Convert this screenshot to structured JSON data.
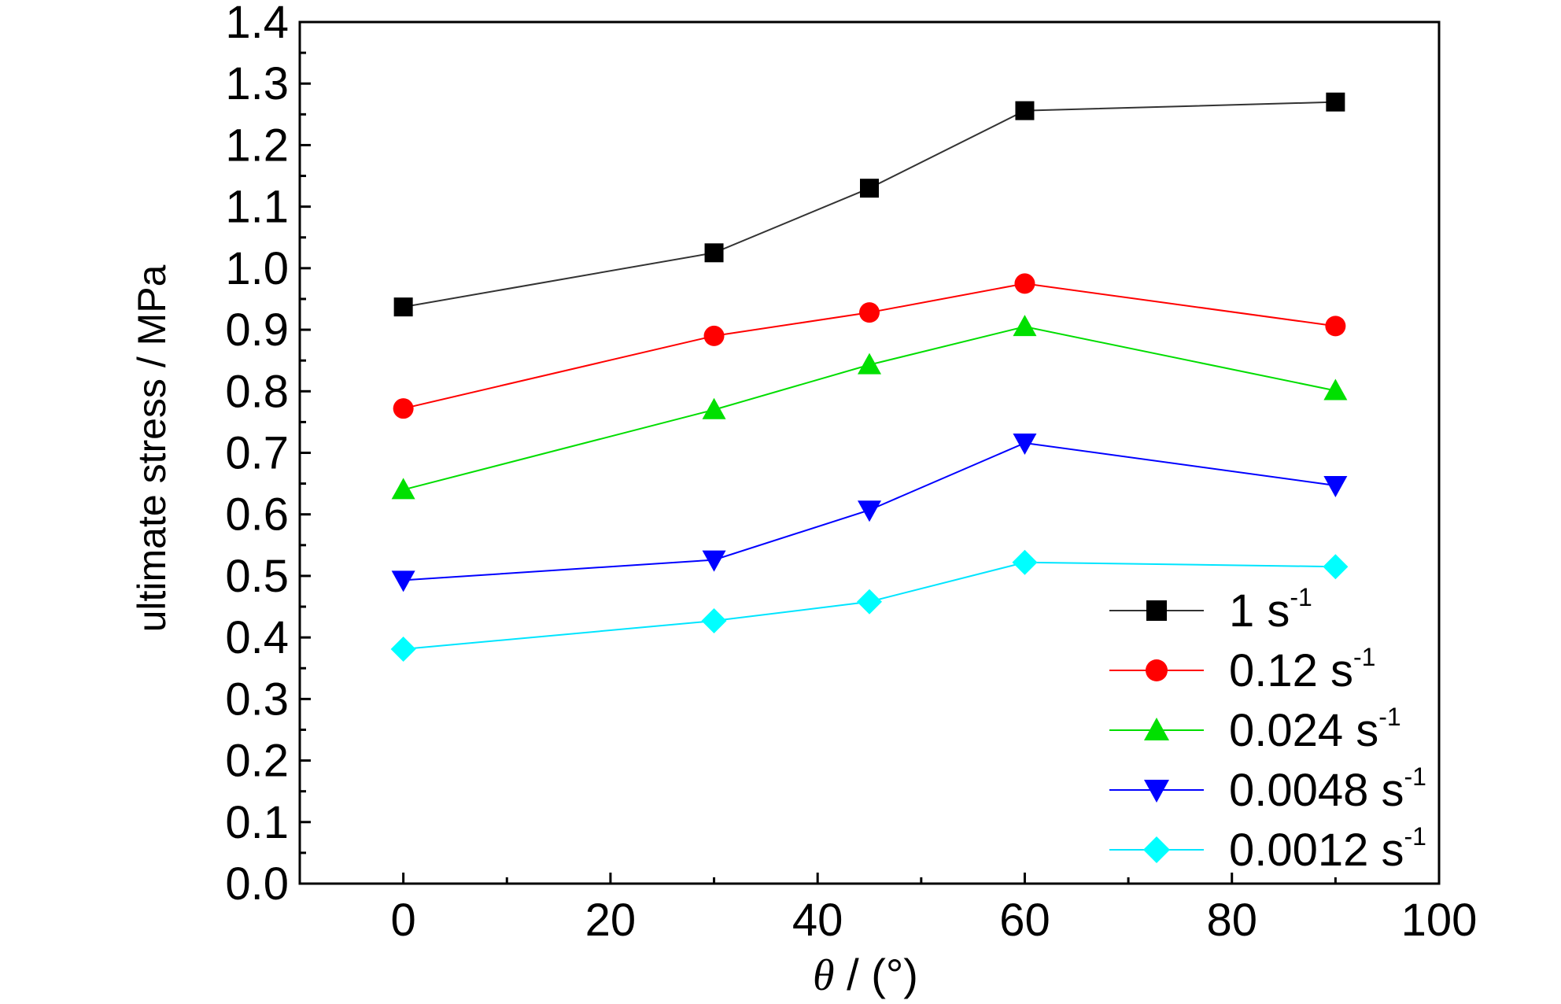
{
  "chart_data": {
    "type": "line",
    "xlabel_symbol": "θ",
    "xlabel_rest": " / (°)",
    "ylabel": "ultimate stress / MPa",
    "xlim": [
      -10,
      100
    ],
    "ylim": [
      0,
      1.4
    ],
    "x_ticks": [
      "0",
      "20",
      "40",
      "60",
      "80",
      "100"
    ],
    "y_ticks": [
      "0.0",
      "0.1",
      "0.2",
      "0.3",
      "0.4",
      "0.5",
      "0.6",
      "0.7",
      "0.8",
      "0.9",
      "1.0",
      "1.1",
      "1.2",
      "1.3",
      "1.4"
    ],
    "x": [
      0,
      30,
      45,
      60,
      90
    ],
    "legend_position": "bottom-right",
    "grid": false,
    "series": [
      {
        "name": "1 s",
        "sup": "-1",
        "marker": "square",
        "color": "#000000",
        "line_color": "#333333",
        "values": [
          0.937,
          1.025,
          1.13,
          1.256,
          1.27
        ]
      },
      {
        "name": "0.12 s",
        "sup": "-1",
        "marker": "circle",
        "color": "#ff0000",
        "line_color": "#ff0000",
        "values": [
          0.772,
          0.89,
          0.928,
          0.975,
          0.906
        ]
      },
      {
        "name": "0.024 s",
        "sup": "-1",
        "marker": "triangle-up",
        "color": "#00e000",
        "line_color": "#00dd00",
        "values": [
          0.64,
          0.77,
          0.843,
          0.905,
          0.801
        ]
      },
      {
        "name": "0.0048 s",
        "sup": "-1",
        "marker": "triangle-down",
        "color": "#0000ff",
        "line_color": "#0000ff",
        "values": [
          0.493,
          0.526,
          0.607,
          0.716,
          0.647
        ]
      },
      {
        "name": "0.0012 s",
        "sup": "-1",
        "marker": "diamond",
        "color": "#00ffff",
        "line_color": "#00e5ff",
        "values": [
          0.381,
          0.427,
          0.458,
          0.522,
          0.515
        ]
      }
    ]
  }
}
